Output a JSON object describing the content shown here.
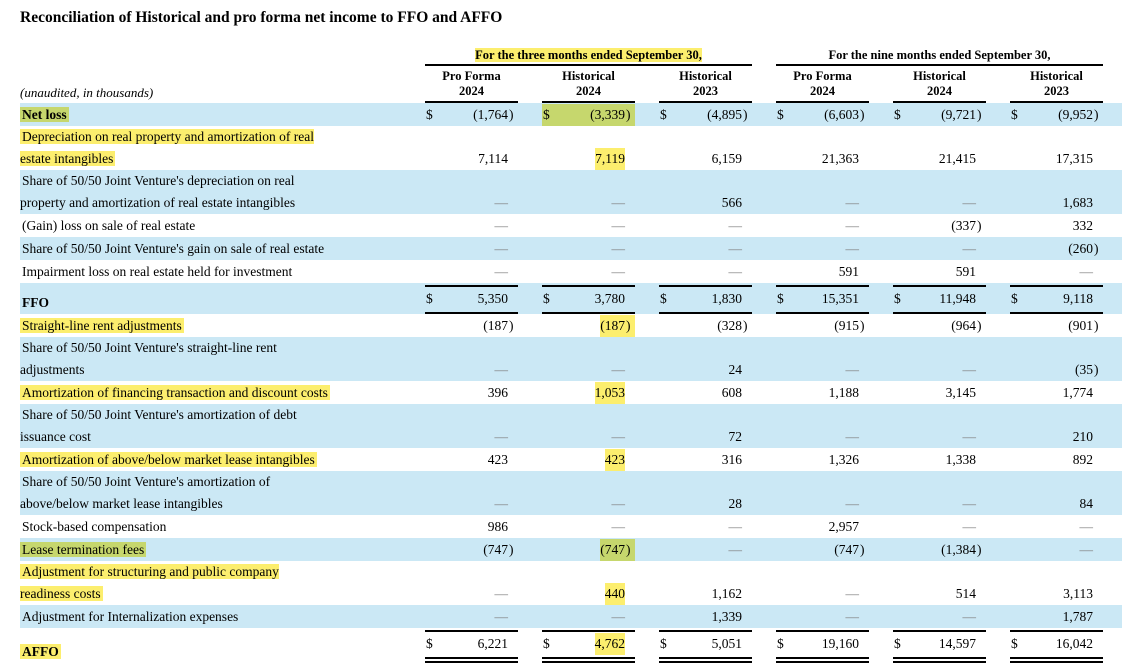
{
  "title": "Reconciliation of Historical and pro forma net income to FFO and AFFO",
  "table": {
    "unaudited_note": "(unaudited, in thousands)",
    "colors": {
      "row_blue": "#cbe8f5",
      "hl_yellow": "#fcee6e",
      "hl_green": "#c6d76d"
    },
    "groups": [
      {
        "label": "For the three months ended September 30,",
        "highlight": true
      },
      {
        "label": "For the nine months ended September 30,",
        "highlight": false
      }
    ],
    "columns": [
      {
        "line1": "Pro Forma",
        "line2": "2024"
      },
      {
        "line1": "Historical",
        "line2": "2024"
      },
      {
        "line1": "Historical",
        "line2": "2023"
      },
      {
        "line1": "Pro Forma",
        "line2": "2024"
      },
      {
        "line1": "Historical",
        "line2": "2024"
      },
      {
        "line1": "Historical",
        "line2": "2023"
      }
    ],
    "rows": [
      {
        "label": "Net loss",
        "bold": true,
        "bg": "blue",
        "label_hl": "green",
        "dollar": true,
        "total": null,
        "cells": [
          {
            "v": "(1,764)"
          },
          {
            "v": "(3,339)",
            "hl": "green",
            "hl_cell": true
          },
          {
            "v": "(4,895)"
          },
          {
            "v": "(6,603)"
          },
          {
            "v": "(9,721)"
          },
          {
            "v": "(9,952)"
          }
        ]
      },
      {
        "label": "Depreciation on real property and amortization of real\nestate intangibles",
        "bg": "white",
        "label_hl": "yellow",
        "cells": [
          {
            "v": "7,114"
          },
          {
            "v": "7,119",
            "hl": "yellow"
          },
          {
            "v": "6,159"
          },
          {
            "v": "21,363"
          },
          {
            "v": "21,415"
          },
          {
            "v": "17,315"
          }
        ]
      },
      {
        "label": "Share of 50/50 Joint Venture's depreciation on real\nproperty and amortization of real estate intangibles",
        "bg": "blue",
        "cells": [
          {
            "v": "—"
          },
          {
            "v": "—"
          },
          {
            "v": "566"
          },
          {
            "v": "—"
          },
          {
            "v": "—"
          },
          {
            "v": "1,683"
          }
        ]
      },
      {
        "label": "(Gain) loss on sale of real estate",
        "bg": "white",
        "cells": [
          {
            "v": "—"
          },
          {
            "v": "—"
          },
          {
            "v": "—"
          },
          {
            "v": "—"
          },
          {
            "v": "(337)"
          },
          {
            "v": "332"
          }
        ]
      },
      {
        "label": "Share of 50/50 Joint Venture's gain on sale of real estate",
        "bg": "blue",
        "cells": [
          {
            "v": "—"
          },
          {
            "v": "—"
          },
          {
            "v": "—"
          },
          {
            "v": "—"
          },
          {
            "v": "—"
          },
          {
            "v": "(260)"
          }
        ]
      },
      {
        "label": "Impairment loss on real estate held for investment",
        "bg": "white",
        "cells": [
          {
            "v": "—"
          },
          {
            "v": "—"
          },
          {
            "v": "—"
          },
          {
            "v": "591"
          },
          {
            "v": "591"
          },
          {
            "v": "—"
          }
        ]
      },
      {
        "label": "FFO",
        "bold": true,
        "bg": "blue",
        "dollar": true,
        "total": "ffo",
        "cells": [
          {
            "v": "5,350"
          },
          {
            "v": "3,780"
          },
          {
            "v": "1,830"
          },
          {
            "v": "15,351"
          },
          {
            "v": "11,948"
          },
          {
            "v": "9,118"
          }
        ]
      },
      {
        "label": "Straight-line rent adjustments",
        "bg": "white",
        "label_hl": "yellow",
        "cells": [
          {
            "v": "(187)"
          },
          {
            "v": "(187)",
            "hl": "yellow"
          },
          {
            "v": "(328)"
          },
          {
            "v": "(915)"
          },
          {
            "v": "(964)"
          },
          {
            "v": "(901)"
          }
        ]
      },
      {
        "label": "Share of 50/50 Joint Venture's straight-line rent\nadjustments",
        "bg": "blue",
        "cells": [
          {
            "v": "—"
          },
          {
            "v": "—"
          },
          {
            "v": "24"
          },
          {
            "v": "—"
          },
          {
            "v": "—"
          },
          {
            "v": "(35)"
          }
        ]
      },
      {
        "label": "Amortization of financing transaction and discount costs",
        "bg": "white",
        "label_hl": "yellow",
        "cells": [
          {
            "v": "396"
          },
          {
            "v": "1,053",
            "hl": "yellow"
          },
          {
            "v": "608"
          },
          {
            "v": "1,188"
          },
          {
            "v": "3,145"
          },
          {
            "v": "1,774"
          }
        ]
      },
      {
        "label": "Share of 50/50 Joint Venture's amortization of debt\nissuance cost",
        "bg": "blue",
        "cells": [
          {
            "v": "—"
          },
          {
            "v": "—"
          },
          {
            "v": "72"
          },
          {
            "v": "—"
          },
          {
            "v": "—"
          },
          {
            "v": "210"
          }
        ]
      },
      {
        "label": "Amortization of above/below market lease intangibles",
        "bg": "white",
        "label_hl": "yellow",
        "cells": [
          {
            "v": "423"
          },
          {
            "v": "423",
            "hl": "yellow"
          },
          {
            "v": "316"
          },
          {
            "v": "1,326"
          },
          {
            "v": "1,338"
          },
          {
            "v": "892"
          }
        ]
      },
      {
        "label": "Share of 50/50 Joint Venture's amortization of\nabove/below market lease intangibles",
        "bg": "blue",
        "cells": [
          {
            "v": "—"
          },
          {
            "v": "—"
          },
          {
            "v": "28"
          },
          {
            "v": "—"
          },
          {
            "v": "—"
          },
          {
            "v": "84"
          }
        ]
      },
      {
        "label": "Stock-based compensation",
        "bg": "white",
        "cells": [
          {
            "v": "986"
          },
          {
            "v": "—"
          },
          {
            "v": "—"
          },
          {
            "v": "2,957"
          },
          {
            "v": "—"
          },
          {
            "v": "—"
          }
        ]
      },
      {
        "label": "Lease termination fees",
        "bg": "blue",
        "label_hl": "green",
        "cells": [
          {
            "v": "(747)"
          },
          {
            "v": "(747)",
            "hl": "green"
          },
          {
            "v": "—"
          },
          {
            "v": "(747)"
          },
          {
            "v": "(1,384)"
          },
          {
            "v": "—"
          }
        ]
      },
      {
        "label": "Adjustment for structuring and public company\nreadiness costs",
        "bg": "white",
        "label_hl": "yellow",
        "cells": [
          {
            "v": "—"
          },
          {
            "v": "440",
            "hl": "yellow"
          },
          {
            "v": "1,162"
          },
          {
            "v": "—"
          },
          {
            "v": "514"
          },
          {
            "v": "3,113"
          }
        ]
      },
      {
        "label": "Adjustment for Internalization expenses",
        "bg": "blue",
        "cells": [
          {
            "v": "—"
          },
          {
            "v": "—"
          },
          {
            "v": "1,339"
          },
          {
            "v": "—"
          },
          {
            "v": "—"
          },
          {
            "v": "1,787"
          }
        ]
      },
      {
        "label": "AFFO",
        "bold": true,
        "bg": "white",
        "label_hl": "yellow",
        "dollar": true,
        "total": "affo",
        "cells": [
          {
            "v": "6,221"
          },
          {
            "v": "4,762",
            "hl": "yellow"
          },
          {
            "v": "5,051"
          },
          {
            "v": "19,160"
          },
          {
            "v": "14,597"
          },
          {
            "v": "16,042"
          }
        ]
      }
    ]
  }
}
